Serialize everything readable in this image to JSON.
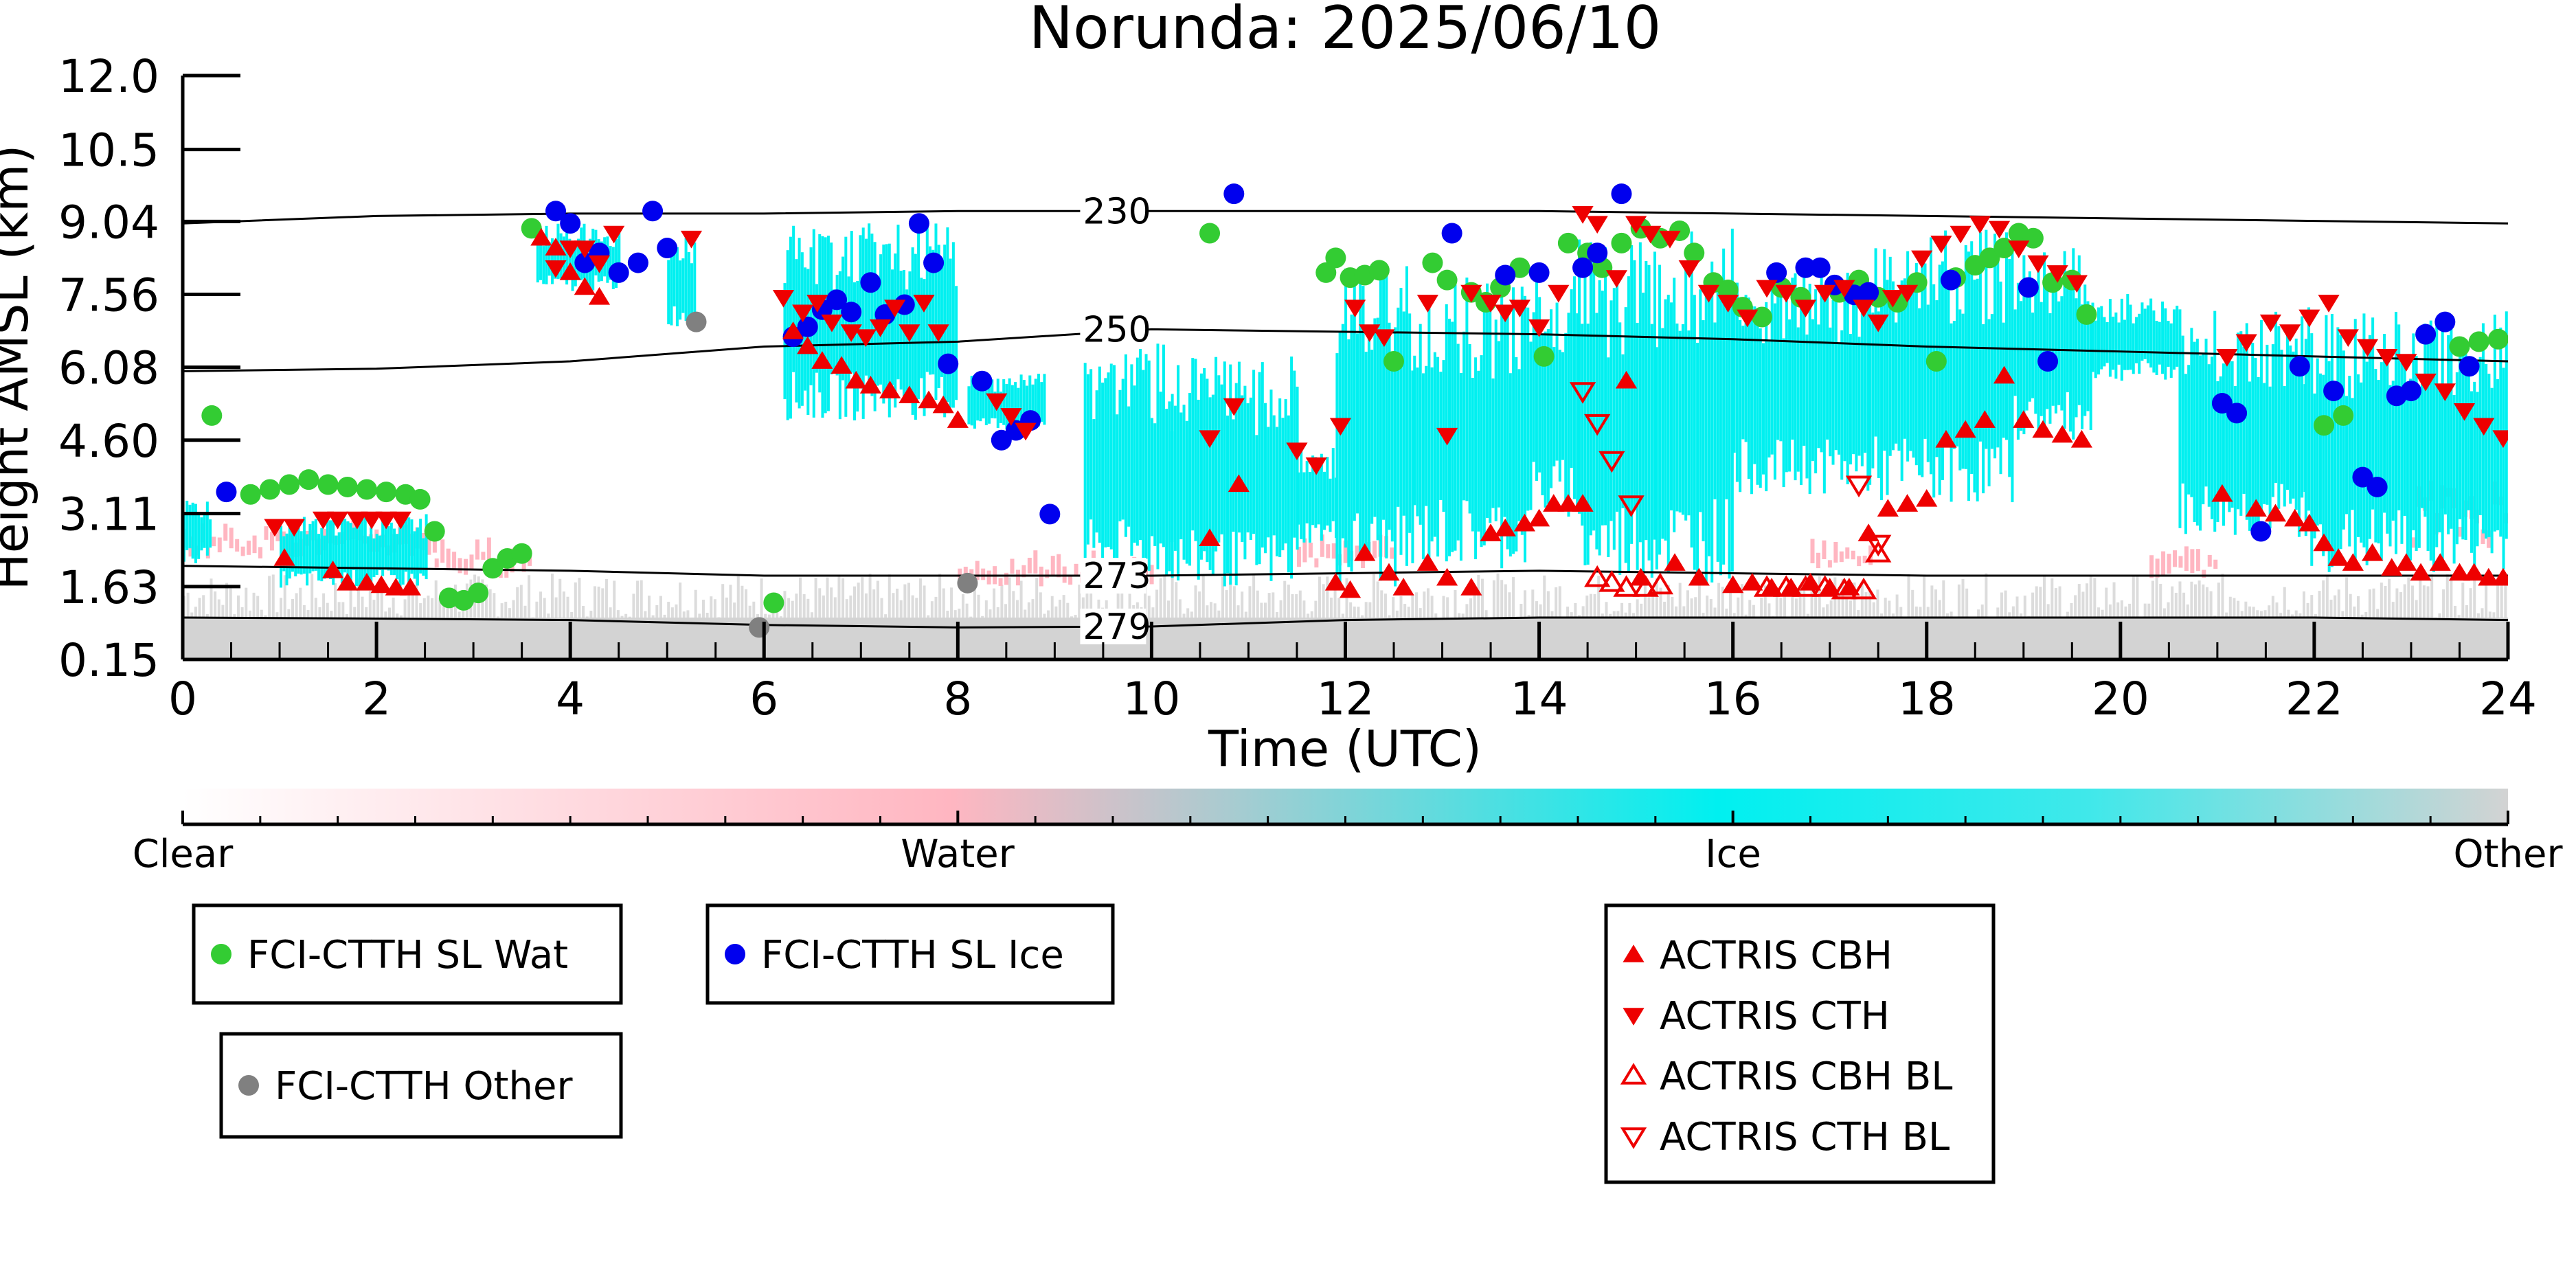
{
  "chart_data": {
    "type": "scatter",
    "title": "Norunda: 2025/06/10",
    "xlabel": "Time (UTC)",
    "ylabel": "Height AMSL (km)",
    "xlim": [
      0,
      24
    ],
    "ylim": [
      0.15,
      12.0
    ],
    "x_ticks": [
      0,
      2,
      4,
      6,
      8,
      10,
      12,
      14,
      16,
      18,
      20,
      22,
      24
    ],
    "y_ticks": [
      "0.15",
      "1.63",
      "3.11",
      "4.60",
      "6.08",
      "7.56",
      "9.04",
      "10.5",
      "12.0"
    ],
    "grid": false,
    "colorbar": {
      "labels": [
        "Clear",
        "Water",
        "Ice",
        "Other"
      ],
      "colors": [
        "#ffffff",
        "#ffb6c1",
        "#00f0f0",
        "#d3d3d3"
      ]
    },
    "colors": {
      "water_marker": "#33cc33",
      "ice_marker": "#0000ee",
      "other_marker": "#808080",
      "actris": "#ee0000",
      "ice_cloud": "#00f0f0",
      "water_cloud": "#ffb6c1",
      "other_cloud": "#d3d3d3"
    },
    "isotherms": [
      {
        "label": "230",
        "x": [
          0,
          2,
          4,
          6,
          8,
          10,
          12,
          14,
          16,
          18,
          20,
          22,
          24
        ],
        "y": [
          9.0,
          9.15,
          9.2,
          9.2,
          9.25,
          9.25,
          9.25,
          9.25,
          9.2,
          9.15,
          9.1,
          9.05,
          9.0
        ]
      },
      {
        "label": "250",
        "x": [
          0,
          2,
          4,
          6,
          8,
          10,
          12,
          14,
          16,
          18,
          20,
          22,
          24
        ],
        "y": [
          6.0,
          6.05,
          6.2,
          6.5,
          6.6,
          6.85,
          6.8,
          6.75,
          6.65,
          6.5,
          6.4,
          6.3,
          6.2
        ]
      },
      {
        "label": "273",
        "x": [
          0,
          2,
          4,
          6,
          8,
          10,
          12,
          14,
          16,
          18,
          20,
          22,
          24
        ],
        "y": [
          2.05,
          2.0,
          1.95,
          1.85,
          1.85,
          1.85,
          1.9,
          1.95,
          1.9,
          1.85,
          1.85,
          1.85,
          1.85
        ]
      },
      {
        "label": "279",
        "x": [
          0,
          2,
          4,
          6,
          8,
          10,
          12,
          14,
          16,
          18,
          20,
          22,
          24
        ],
        "y": [
          1.0,
          0.98,
          0.95,
          0.85,
          0.8,
          0.82,
          0.95,
          1.0,
          1.0,
          1.0,
          1.0,
          1.0,
          0.95
        ]
      }
    ],
    "series": [
      {
        "name": "FCI-CTTH SL Wat",
        "marker": "circle",
        "color": "#33cc33",
        "x": [
          0.3,
          0.7,
          0.9,
          1.1,
          1.3,
          1.5,
          1.7,
          1.9,
          2.1,
          2.3,
          2.45,
          2.6,
          2.75,
          2.9,
          3.05,
          3.2,
          3.35,
          3.5,
          3.6,
          6.1,
          10.6,
          11.8,
          11.9,
          12.05,
          12.2,
          12.35,
          12.5,
          12.9,
          13.05,
          13.3,
          13.45,
          13.6,
          13.8,
          14.05,
          14.3,
          14.5,
          14.65,
          14.85,
          15.05,
          15.25,
          15.45,
          15.6,
          15.8,
          15.95,
          16.1,
          16.3,
          16.5,
          16.7,
          17.1,
          17.3,
          17.5,
          17.7,
          17.9,
          18.1,
          18.3,
          18.5,
          18.65,
          18.8,
          18.95,
          19.1,
          19.3,
          19.5,
          19.65,
          22.1,
          22.3,
          23.5,
          23.7,
          23.9
        ],
        "y": [
          5.1,
          3.5,
          3.6,
          3.7,
          3.8,
          3.7,
          3.65,
          3.6,
          3.55,
          3.5,
          3.4,
          2.75,
          1.4,
          1.35,
          1.5,
          2.0,
          2.2,
          2.3,
          8.9,
          1.3,
          8.8,
          8.0,
          8.3,
          7.9,
          7.95,
          8.05,
          6.2,
          8.2,
          7.85,
          7.6,
          7.4,
          7.7,
          8.1,
          6.3,
          8.6,
          8.4,
          8.1,
          8.6,
          8.9,
          8.7,
          8.85,
          8.4,
          7.8,
          7.65,
          7.3,
          7.1,
          7.7,
          7.5,
          7.6,
          7.85,
          7.5,
          7.4,
          7.8,
          6.2,
          7.9,
          8.15,
          8.3,
          8.5,
          8.8,
          8.7,
          7.8,
          7.85,
          7.15,
          4.9,
          5.1,
          6.5,
          6.6,
          6.65
        ]
      },
      {
        "name": "FCI-CTTH SL Ice",
        "marker": "circle",
        "color": "#0000ee",
        "x": [
          0.45,
          3.85,
          4.0,
          4.15,
          4.3,
          4.5,
          4.7,
          4.85,
          5.0,
          6.3,
          6.45,
          6.6,
          6.75,
          6.9,
          7.1,
          7.25,
          7.45,
          7.6,
          7.75,
          7.9,
          8.25,
          8.45,
          8.6,
          8.75,
          8.95,
          10.85,
          13.1,
          13.65,
          14.0,
          14.45,
          14.6,
          14.85,
          16.45,
          16.75,
          16.9,
          17.05,
          17.25,
          17.4,
          18.25,
          19.05,
          19.25,
          21.05,
          21.2,
          21.45,
          21.85,
          22.2,
          22.5,
          22.65,
          22.85,
          23.0,
          23.15,
          23.35,
          23.6
        ],
        "y": [
          3.55,
          9.25,
          9.0,
          8.2,
          8.4,
          8.0,
          8.2,
          9.25,
          8.5,
          6.7,
          6.9,
          7.25,
          7.45,
          7.2,
          7.8,
          7.15,
          7.35,
          9.0,
          8.2,
          6.15,
          5.8,
          4.6,
          4.8,
          5.0,
          3.1,
          9.6,
          8.8,
          7.95,
          8.0,
          8.1,
          8.4,
          9.6,
          8.0,
          8.1,
          8.1,
          7.75,
          7.55,
          7.6,
          7.85,
          7.7,
          6.2,
          5.35,
          5.15,
          2.75,
          6.1,
          5.6,
          3.85,
          3.65,
          5.5,
          5.6,
          6.75,
          7.0,
          6.1
        ]
      },
      {
        "name": "FCI-CTTH Other",
        "marker": "circle",
        "color": "#808080",
        "x": [
          5.3,
          5.95,
          8.1
        ],
        "y": [
          7.0,
          0.8,
          1.7
        ]
      },
      {
        "name": "ACTRIS CBH",
        "marker": "triangle-up",
        "color": "#ee0000",
        "filled": true,
        "x": [
          1.05,
          1.55,
          1.7,
          1.9,
          2.05,
          2.2,
          2.35,
          3.7,
          3.85,
          4.0,
          4.15,
          4.3,
          6.3,
          6.45,
          6.6,
          6.8,
          6.95,
          7.1,
          7.3,
          7.5,
          7.7,
          7.85,
          8.0,
          10.6,
          10.9,
          11.9,
          12.05,
          12.2,
          12.45,
          12.6,
          12.85,
          13.05,
          13.3,
          13.5,
          13.65,
          13.85,
          14.0,
          14.15,
          14.3,
          14.45,
          14.9,
          15.05,
          15.4,
          15.65,
          16.0,
          16.2,
          16.4,
          16.6,
          16.8,
          17.0,
          17.2,
          17.4,
          17.6,
          17.8,
          18.0,
          18.2,
          18.4,
          18.6,
          18.8,
          19.0,
          19.2,
          19.4,
          19.6,
          21.05,
          21.4,
          21.6,
          21.8,
          21.95,
          22.1,
          22.25,
          22.4,
          22.6,
          22.8,
          22.95,
          23.1,
          23.3,
          23.5,
          23.65,
          23.8,
          23.95
        ],
        "y": [
          2.2,
          1.95,
          1.7,
          1.7,
          1.65,
          1.6,
          1.6,
          8.7,
          8.5,
          8.0,
          7.7,
          7.5,
          6.8,
          6.5,
          6.2,
          6.1,
          5.8,
          5.7,
          5.6,
          5.5,
          5.4,
          5.3,
          5.0,
          2.6,
          3.7,
          1.7,
          1.55,
          2.3,
          1.9,
          1.6,
          2.1,
          1.8,
          1.6,
          2.7,
          2.8,
          2.9,
          3.0,
          3.3,
          3.3,
          3.3,
          5.8,
          1.8,
          2.1,
          1.8,
          1.65,
          1.7,
          1.6,
          1.6,
          1.7,
          1.6,
          1.6,
          2.7,
          3.2,
          3.3,
          3.4,
          4.6,
          4.8,
          5.0,
          5.9,
          5.0,
          4.8,
          4.7,
          4.6,
          3.5,
          3.2,
          3.1,
          3.0,
          2.9,
          2.5,
          2.2,
          2.1,
          2.3,
          2.0,
          2.1,
          1.9,
          2.1,
          1.9,
          1.9,
          1.8,
          1.8
        ]
      },
      {
        "name": "ACTRIS CTH",
        "marker": "triangle-down",
        "color": "#ee0000",
        "filled": true,
        "x": [
          0.95,
          1.15,
          1.45,
          1.6,
          1.8,
          1.95,
          2.1,
          2.25,
          3.85,
          4.0,
          4.15,
          4.3,
          4.45,
          5.25,
          6.2,
          6.4,
          6.55,
          6.7,
          6.9,
          7.05,
          7.2,
          7.35,
          7.5,
          7.65,
          7.8,
          8.4,
          8.55,
          8.7,
          10.6,
          10.85,
          11.5,
          11.7,
          11.95,
          12.1,
          12.25,
          12.4,
          12.85,
          13.05,
          13.3,
          13.5,
          13.65,
          13.8,
          14.0,
          14.2,
          14.45,
          14.6,
          14.8,
          15.0,
          15.15,
          15.35,
          15.55,
          15.75,
          15.95,
          16.15,
          16.35,
          16.55,
          16.75,
          16.95,
          17.15,
          17.35,
          17.5,
          17.65,
          17.8,
          17.95,
          18.15,
          18.35,
          18.55,
          18.75,
          18.95,
          19.15,
          19.35,
          19.55,
          21.1,
          21.3,
          21.55,
          21.75,
          21.95,
          22.15,
          22.35,
          22.55,
          22.75,
          22.95,
          23.15,
          23.35,
          23.55,
          23.75,
          23.95
        ],
        "y": [
          2.85,
          2.85,
          3.0,
          3.0,
          3.0,
          3.0,
          3.0,
          3.0,
          8.1,
          8.5,
          8.5,
          8.2,
          8.8,
          8.7,
          7.5,
          7.2,
          7.4,
          7.0,
          6.8,
          6.7,
          6.9,
          7.3,
          6.8,
          7.4,
          6.8,
          5.4,
          5.1,
          4.8,
          4.65,
          5.3,
          4.4,
          4.1,
          4.9,
          7.3,
          6.8,
          6.7,
          7.4,
          4.7,
          7.6,
          7.4,
          7.2,
          7.3,
          6.9,
          7.6,
          9.2,
          9.0,
          7.9,
          9.0,
          8.8,
          8.7,
          8.1,
          7.6,
          7.4,
          7.1,
          7.7,
          7.6,
          7.3,
          7.6,
          7.7,
          7.3,
          7.0,
          7.5,
          7.6,
          8.3,
          8.6,
          8.8,
          9.0,
          8.9,
          8.5,
          8.2,
          8.0,
          7.8,
          6.3,
          6.6,
          7.0,
          6.8,
          7.1,
          7.4,
          6.7,
          6.5,
          6.3,
          6.2,
          5.8,
          5.6,
          5.2,
          4.9,
          4.65
        ]
      },
      {
        "name": "ACTRIS CBH BL",
        "marker": "triangle-up",
        "color": "#ee0000",
        "filled": false,
        "x": [
          14.6,
          14.75,
          14.9,
          15.1,
          15.25,
          16.35,
          16.55,
          16.75,
          16.95,
          17.15,
          17.35,
          17.5
        ],
        "y": [
          1.8,
          1.7,
          1.6,
          1.6,
          1.65,
          1.6,
          1.6,
          1.6,
          1.6,
          1.55,
          1.55,
          2.3
        ]
      },
      {
        "name": "ACTRIS CTH BL",
        "marker": "triangle-down",
        "color": "#ee0000",
        "filled": false,
        "x": [
          14.45,
          14.6,
          14.75,
          14.95,
          17.3,
          17.5
        ],
        "y": [
          5.6,
          4.95,
          4.2,
          3.3,
          3.7,
          2.5
        ]
      }
    ],
    "legends": [
      {
        "entries": [
          0
        ]
      },
      {
        "entries": [
          1
        ]
      },
      {
        "entries": [
          2
        ]
      },
      {
        "entries": [
          3,
          4,
          5,
          6
        ]
      }
    ]
  }
}
